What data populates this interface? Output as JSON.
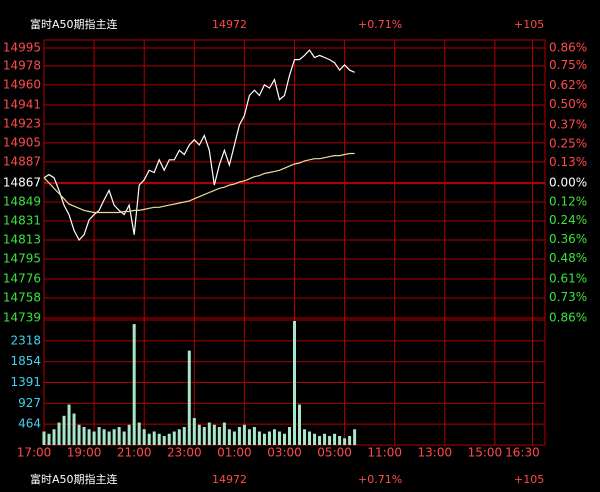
{
  "header": {
    "name": "富时A50期指主连",
    "price": "14972",
    "change": "+0.71%",
    "points": "+105"
  },
  "footer": {
    "name": "富时A50期指主连",
    "price": "14972",
    "change": "+0.71%",
    "points": "+105"
  },
  "chart_data": [
    {
      "type": "line",
      "x": [
        0,
        0.2,
        0.4,
        0.6,
        0.8,
        1,
        1.2,
        1.4,
        1.6,
        1.8,
        2,
        2.2,
        2.4,
        2.6,
        2.8,
        3,
        3.2,
        3.4,
        3.6,
        3.8,
        4,
        4.2,
        4.4,
        4.6,
        4.8,
        5,
        5.2,
        5.4,
        5.6,
        5.8,
        6,
        6.2,
        6.4,
        6.6,
        6.8,
        7,
        7.2,
        7.4,
        7.6,
        7.8,
        8,
        8.2,
        8.4,
        8.6,
        8.8,
        9,
        9.2,
        9.4,
        9.6,
        9.8,
        10,
        10.2,
        10.4,
        10.6,
        10.8,
        11,
        11.2,
        11.4,
        11.6,
        11.8,
        12,
        12.2,
        12.4
      ],
      "xlim": [
        0,
        20
      ],
      "xticks": [
        {
          "value": 0,
          "label": "17:00"
        },
        {
          "value": 2,
          "label": "19:00"
        },
        {
          "value": 4,
          "label": "21:00"
        },
        {
          "value": 6,
          "label": "23:00"
        },
        {
          "value": 8,
          "label": "01:00"
        },
        {
          "value": 10,
          "label": "03:00"
        },
        {
          "value": 12,
          "label": "05:00"
        },
        {
          "value": 14,
          "label": "11:00"
        },
        {
          "value": 16,
          "label": "13:00"
        },
        {
          "value": 18,
          "label": "15:00"
        },
        {
          "value": 19.5,
          "label": "16:30"
        }
      ],
      "ylim": [
        14739,
        14995
      ],
      "yticks": [
        14995,
        14978,
        14960,
        14941,
        14923,
        14905,
        14887,
        14867,
        14849,
        14831,
        14813,
        14795,
        14776,
        14758,
        14739
      ],
      "y2lim": [
        -0.86,
        0.86
      ],
      "y2ticks": [
        {
          "value": 0.86,
          "label": "0.86%"
        },
        {
          "value": 0.75,
          "label": "0.75%"
        },
        {
          "value": 0.62,
          "label": "0.62%"
        },
        {
          "value": 0.5,
          "label": "0.50%"
        },
        {
          "value": 0.37,
          "label": "0.37%"
        },
        {
          "value": 0.25,
          "label": "0.25%"
        },
        {
          "value": 0.13,
          "label": "0.13%"
        },
        {
          "value": 0,
          "label": "0.00%"
        },
        {
          "value": -0.12,
          "label": "0.12%"
        },
        {
          "value": -0.24,
          "label": "0.24%"
        },
        {
          "value": -0.36,
          "label": "0.36%"
        },
        {
          "value": -0.48,
          "label": "0.48%"
        },
        {
          "value": -0.61,
          "label": "0.61%"
        },
        {
          "value": -0.73,
          "label": "0.73%"
        },
        {
          "value": -0.86,
          "label": "0.86%"
        }
      ],
      "grid": true,
      "series": [
        {
          "color": "#ffffff",
          "values": [
            14872,
            14875,
            14872,
            14860,
            14846,
            14837,
            14822,
            14813,
            14818,
            14832,
            14837,
            14841,
            14851,
            14860,
            14846,
            14841,
            14837,
            14846,
            14818,
            14865,
            14870,
            14879,
            14877,
            14889,
            14879,
            14889,
            14889,
            14898,
            14894,
            14903,
            14908,
            14903,
            14912,
            14898,
            14865,
            14884,
            14898,
            14884,
            14903,
            14922,
            14931,
            14950,
            14955,
            14950,
            14960,
            14957,
            14965,
            14946,
            14950,
            14969,
            14984,
            14984,
            14988,
            14993,
            14986,
            14988,
            14986,
            14984,
            14981,
            14974,
            14979,
            14974,
            14972
          ]
        },
        {
          "color": "#e8dc9c",
          "values": [
            14872,
            14867,
            14862,
            14857,
            14852,
            14847,
            14845,
            14843,
            14841,
            14840,
            14839,
            14839,
            14839,
            14839,
            14839,
            14839,
            14840,
            14840,
            14841,
            14841,
            14842,
            14843,
            14844,
            14844,
            14845,
            14846,
            14847,
            14848,
            14849,
            14850,
            14852,
            14854,
            14856,
            14858,
            14860,
            14862,
            14863,
            14865,
            14866,
            14868,
            14869,
            14871,
            14873,
            14874,
            14876,
            14877,
            14878,
            14879,
            14881,
            14883,
            14885,
            14886,
            14888,
            14889,
            14890,
            14890,
            14891,
            14892,
            14893,
            14893,
            14894,
            14895,
            14895
          ]
        }
      ]
    },
    {
      "type": "bar",
      "color": "#a8e8c8",
      "ylim": [
        0,
        2782
      ],
      "yticks": [
        2318,
        1854,
        1391,
        927,
        464
      ],
      "values": [
        300,
        250,
        350,
        500,
        650,
        900,
        700,
        450,
        400,
        350,
        300,
        400,
        350,
        300,
        350,
        400,
        300,
        450,
        2690,
        500,
        350,
        250,
        300,
        250,
        200,
        250,
        300,
        350,
        400,
        2100,
        600,
        450,
        400,
        500,
        450,
        400,
        500,
        350,
        300,
        400,
        450,
        350,
        400,
        300,
        250,
        300,
        350,
        300,
        250,
        400,
        2760,
        900,
        350,
        300,
        250,
        200,
        250,
        200,
        250,
        200,
        150,
        200,
        350
      ]
    }
  ]
}
